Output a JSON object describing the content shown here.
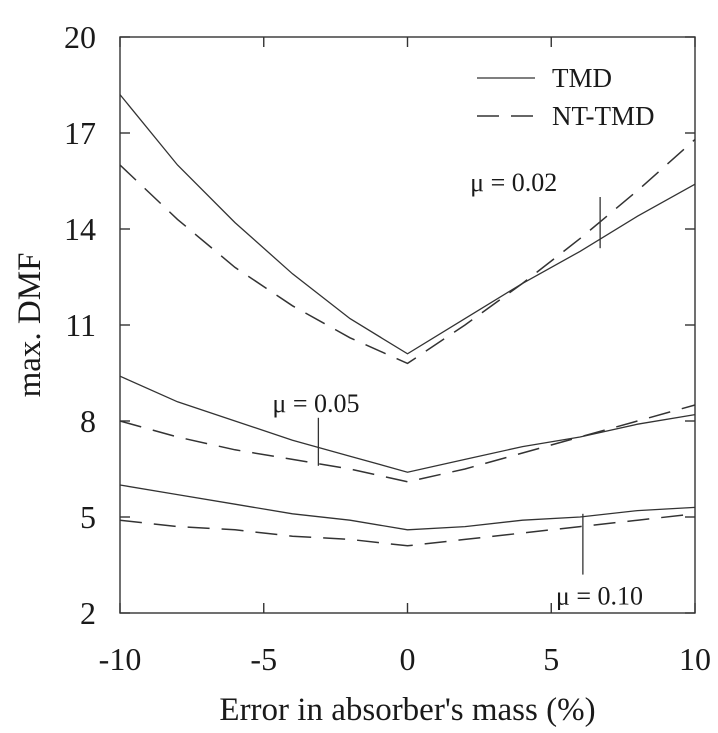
{
  "chart_data": {
    "type": "line",
    "xlabel": "Error in absorber's mass (%)",
    "ylabel": "max. DMF",
    "xlim": [
      -10,
      10
    ],
    "ylim": [
      2,
      20
    ],
    "xticks": [
      -10,
      -5,
      0,
      5,
      10
    ],
    "yticks": [
      2,
      5,
      8,
      11,
      14,
      17,
      20
    ],
    "legend": {
      "placement": "top-right",
      "entries": [
        {
          "label": "TMD",
          "style": "solid"
        },
        {
          "label": "NT-TMD",
          "style": "dashed"
        }
      ]
    },
    "series": [
      {
        "name": "TMD",
        "group": "μ = 0.02",
        "style": "solid",
        "x": [
          -10,
          -8,
          -6,
          -4,
          -2,
          0,
          2,
          4,
          6,
          8,
          10
        ],
        "y": [
          18.2,
          16.0,
          14.2,
          12.6,
          11.2,
          10.1,
          11.2,
          12.3,
          13.3,
          14.4,
          15.4
        ]
      },
      {
        "name": "NT-TMD",
        "group": "μ = 0.02",
        "style": "dashed",
        "x": [
          -10,
          -8,
          -6,
          -4,
          -2,
          0,
          2,
          4,
          6,
          8,
          10
        ],
        "y": [
          16.0,
          14.3,
          12.8,
          11.6,
          10.6,
          9.8,
          11.0,
          12.3,
          13.7,
          15.2,
          16.8
        ]
      },
      {
        "name": "TMD",
        "group": "μ = 0.05",
        "style": "solid",
        "x": [
          -10,
          -8,
          -6,
          -4,
          -2,
          0,
          2,
          4,
          6,
          8,
          10
        ],
        "y": [
          9.4,
          8.6,
          8.0,
          7.4,
          6.9,
          6.4,
          6.8,
          7.2,
          7.5,
          7.9,
          8.2
        ]
      },
      {
        "name": "NT-TMD",
        "group": "μ = 0.05",
        "style": "dashed",
        "x": [
          -10,
          -8,
          -6,
          -4,
          -2,
          0,
          2,
          4,
          6,
          8,
          10
        ],
        "y": [
          8.0,
          7.5,
          7.1,
          6.8,
          6.5,
          6.1,
          6.5,
          7.0,
          7.5,
          8.0,
          8.5
        ]
      },
      {
        "name": "TMD",
        "group": "μ = 0.10",
        "style": "solid",
        "x": [
          -10,
          -8,
          -6,
          -4,
          -2,
          0,
          2,
          4,
          6,
          8,
          10
        ],
        "y": [
          6.0,
          5.7,
          5.4,
          5.1,
          4.9,
          4.6,
          4.7,
          4.9,
          5.0,
          5.2,
          5.3
        ]
      },
      {
        "name": "NT-TMD",
        "group": "μ = 0.10",
        "style": "dashed",
        "x": [
          -10,
          -8,
          -6,
          -4,
          -2,
          0,
          2,
          4,
          6,
          8,
          10
        ],
        "y": [
          4.9,
          4.7,
          4.6,
          4.4,
          4.3,
          4.1,
          4.3,
          4.5,
          4.7,
          4.9,
          5.1
        ]
      }
    ],
    "annotations": [
      {
        "text": "μ = 0.02",
        "pointer_x": 6.7,
        "pointer_y": [
          13.4,
          15.0
        ]
      },
      {
        "text": "μ = 0.05",
        "pointer_x": -3.1,
        "pointer_y": [
          6.6,
          8.1
        ]
      },
      {
        "text": "μ = 0.10",
        "pointer_x": 6.1,
        "pointer_y": [
          3.2,
          5.1
        ]
      }
    ]
  }
}
